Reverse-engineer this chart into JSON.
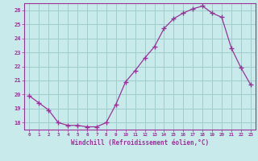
{
  "x": [
    0,
    1,
    2,
    3,
    4,
    5,
    6,
    7,
    8,
    9,
    10,
    11,
    12,
    13,
    14,
    15,
    16,
    17,
    18,
    19,
    20,
    21,
    22,
    23
  ],
  "y": [
    19.9,
    19.4,
    18.9,
    18.0,
    17.8,
    17.8,
    17.7,
    17.7,
    18.0,
    19.3,
    20.9,
    21.7,
    22.6,
    23.4,
    24.7,
    25.4,
    25.8,
    26.1,
    26.3,
    25.8,
    25.5,
    23.3,
    21.9,
    20.7
  ],
  "line_color": "#993399",
  "marker": "+",
  "background_color": "#c8eaea",
  "grid_color": "#a0cccc",
  "xlabel": "Windchill (Refroidissement éolien,°C)",
  "ylim": [
    17.5,
    26.5
  ],
  "yticks": [
    18,
    19,
    20,
    21,
    22,
    23,
    24,
    25,
    26
  ],
  "xticks": [
    0,
    1,
    2,
    3,
    4,
    5,
    6,
    7,
    8,
    9,
    10,
    11,
    12,
    13,
    14,
    15,
    16,
    17,
    18,
    19,
    20,
    21,
    22,
    23
  ],
  "tick_color": "#993399",
  "label_color": "#993399"
}
